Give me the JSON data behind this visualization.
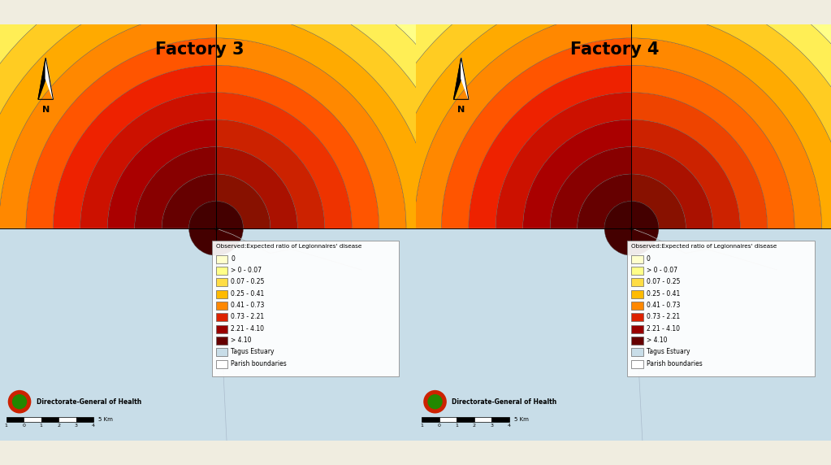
{
  "panels": [
    {
      "title": "Factory 3"
    },
    {
      "title": "Factory 4"
    }
  ],
  "title_fontsize": 15,
  "title_fontweight": "bold",
  "bg_color": "#f0ede0",
  "water_color": "#c8dde8",
  "land_color": "#f0ede0",
  "map_line_color": "#999999",
  "legend_title": "Observed:Expected ratio of Legionnaires' disease",
  "legend_labels": [
    "0",
    "> 0 - 0.07",
    "0.07 - 0.25",
    "0.25 - 0.41",
    "0.41 - 0.73",
    "0.73 - 2.21",
    "2.21 - 4.10",
    "> 4.10",
    "Tagus Estuary",
    "Parish boundaries"
  ],
  "legend_colors": [
    "#ffffcc",
    "#ffff88",
    "#ffdd44",
    "#ffbb00",
    "#ff8800",
    "#dd2200",
    "#990000",
    "#660000",
    "#c8dde8",
    "#ffffff"
  ],
  "n_rings": 13,
  "colors_f3_left": [
    "#ffffcc",
    "#ffff88",
    "#ffee55",
    "#ffcc22",
    "#ffaa00",
    "#ff8800",
    "#ff5500",
    "#ee2200",
    "#cc1100",
    "#aa0000",
    "#880000",
    "#660000",
    "#440000"
  ],
  "colors_f3_right": [
    "#ffffee",
    "#ffffcc",
    "#ffff88",
    "#ffee55",
    "#ffcc22",
    "#ffaa00",
    "#ff8800",
    "#ff5500",
    "#ee3300",
    "#cc2200",
    "#aa1100",
    "#881100",
    "#660000"
  ],
  "colors_f4_left": [
    "#ffffcc",
    "#ffff88",
    "#ffee55",
    "#ffcc22",
    "#ffaa00",
    "#ff8800",
    "#ff5500",
    "#ee2200",
    "#cc1100",
    "#aa0000",
    "#880000",
    "#660000",
    "#440000"
  ],
  "colors_f4_right": [
    "#ffffee",
    "#ffffcc",
    "#ffff88",
    "#ffee55",
    "#ffcc22",
    "#ffaa00",
    "#ff8800",
    "#ff6600",
    "#ee4400",
    "#cc2200",
    "#aa1100",
    "#881100",
    "#660000"
  ],
  "dgh_label": "Directorate-General of Health",
  "scale_label": "5 Km",
  "scale_ticks": [
    "1",
    "0",
    "1",
    "2",
    "3",
    "4"
  ]
}
